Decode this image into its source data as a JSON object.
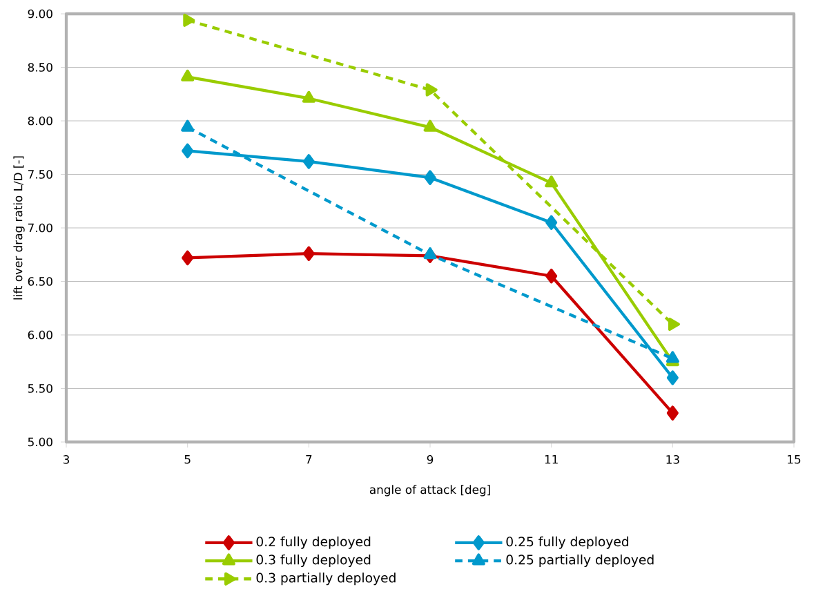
{
  "chart_data": {
    "type": "line",
    "xlabel": "angle of attack [deg]",
    "ylabel": "lift over drag ratio L/D [-]",
    "xlim": [
      3,
      15
    ],
    "xticks": [
      3,
      5,
      7,
      9,
      11,
      13,
      15
    ],
    "ylim": [
      5,
      9
    ],
    "yticks": [
      {
        "value": 5,
        "label": "5.00"
      },
      {
        "value": 5.5,
        "label": "5.50"
      },
      {
        "value": 6,
        "label": "6.00"
      },
      {
        "value": 6.5,
        "label": "6.50"
      },
      {
        "value": 7,
        "label": "7.00"
      },
      {
        "value": 7.5,
        "label": "7.50"
      },
      {
        "value": 8,
        "label": "8.00"
      },
      {
        "value": 8.5,
        "label": "8.50"
      },
      {
        "value": 9,
        "label": "9.00"
      }
    ],
    "grid": "y",
    "legend": "bottom",
    "series": [
      {
        "name": "0.2 fully deployed",
        "color": "#cc0000",
        "marker": "diamond",
        "line_style": "solid",
        "x": [
          5,
          7,
          9,
          11,
          13
        ],
        "values": [
          6.72,
          6.76,
          6.74,
          6.55,
          5.27
        ]
      },
      {
        "name": "0.25 fully deployed",
        "color": "#0099cc",
        "marker": "diamond",
        "line_style": "solid",
        "x": [
          5,
          7,
          9,
          11,
          13
        ],
        "values": [
          7.72,
          7.62,
          7.47,
          7.05,
          5.6
        ]
      },
      {
        "name": "0.3 fully deployed",
        "color": "#99cc00",
        "marker": "triangle",
        "line_style": "solid",
        "x": [
          5,
          7,
          9,
          11,
          13
        ],
        "values": [
          8.41,
          8.21,
          7.94,
          7.42,
          5.75
        ]
      },
      {
        "name": "0.25 partially deployed",
        "color": "#0099cc",
        "marker": "triangle",
        "line_style": "dashed",
        "x": [
          5,
          9,
          13
        ],
        "values": [
          7.94,
          6.75,
          5.78
        ]
      },
      {
        "name": "0.3 partially deployed",
        "color": "#99cc00",
        "marker": "triangle-right",
        "line_style": "dashed",
        "x": [
          5,
          9,
          13
        ],
        "values": [
          8.94,
          8.29,
          6.1
        ]
      }
    ]
  }
}
